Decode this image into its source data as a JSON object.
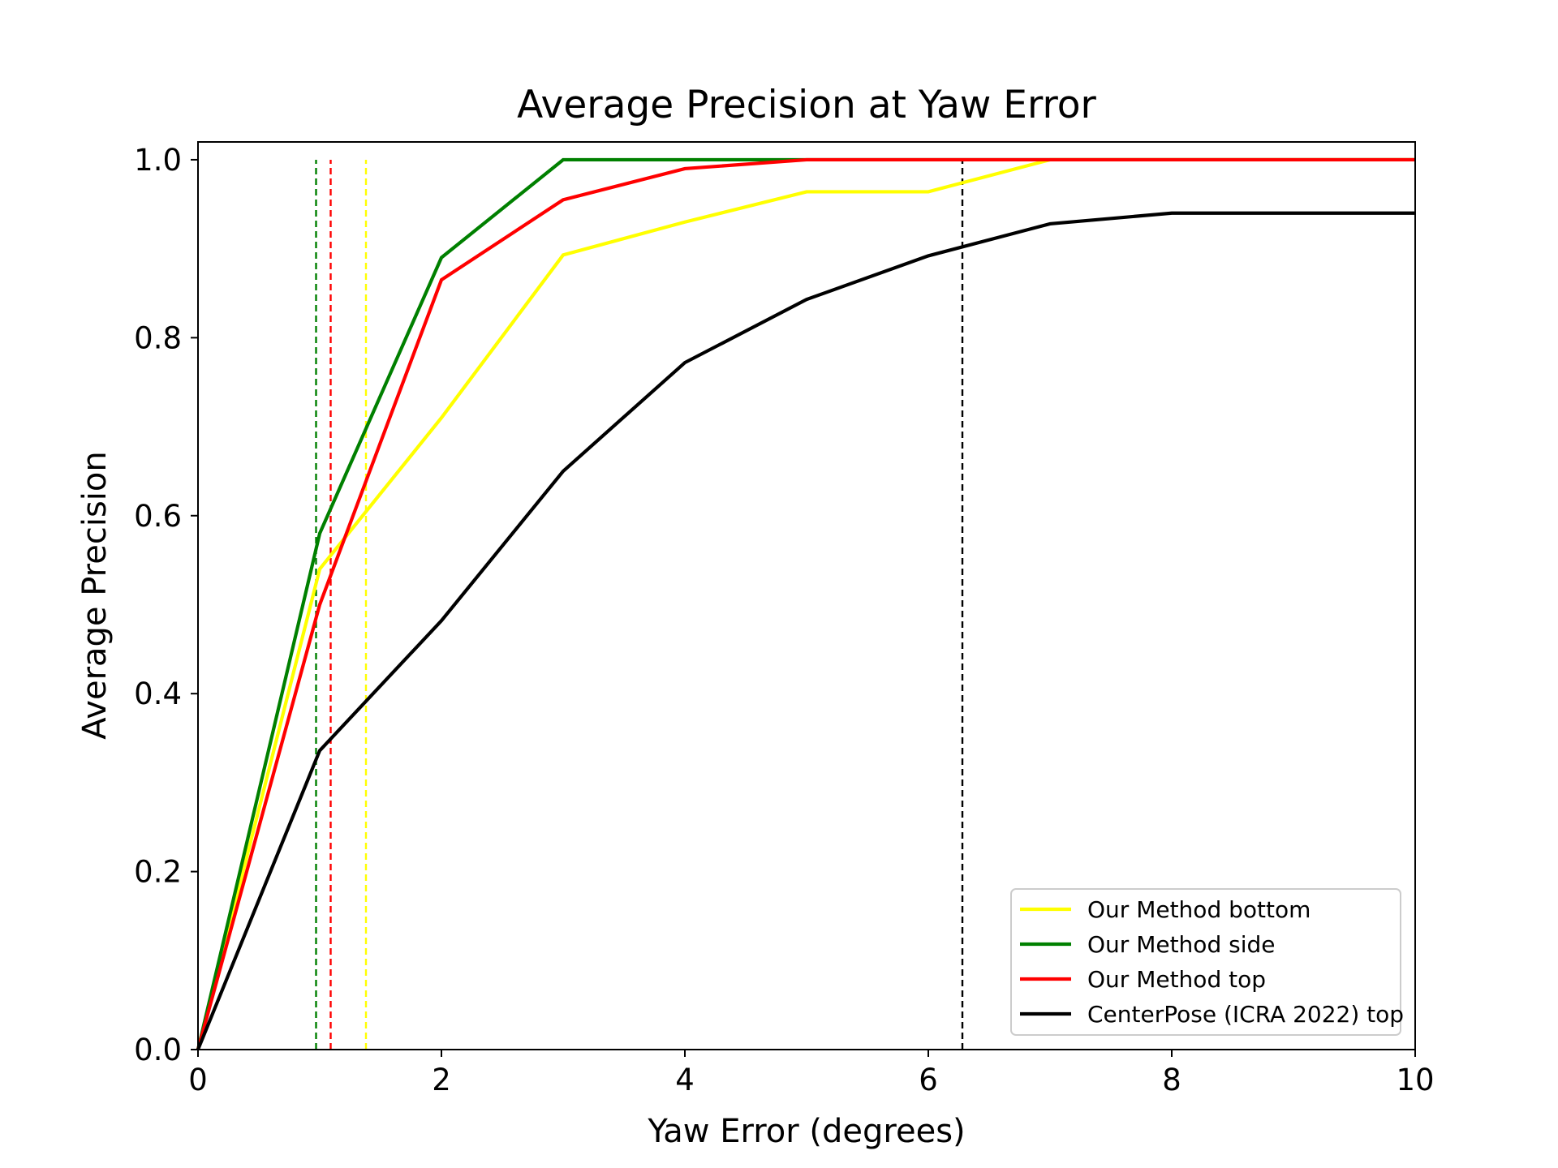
{
  "chart_data": {
    "type": "line",
    "title": "Average Precision at Yaw Error",
    "xlabel": "Yaw Error (degrees)",
    "ylabel": "Average Precision",
    "xlim": [
      0,
      10
    ],
    "ylim": [
      0,
      1.02
    ],
    "x_ticks": [
      0,
      2,
      4,
      6,
      8,
      10
    ],
    "y_ticks": [
      0.0,
      0.2,
      0.4,
      0.6,
      0.8,
      1.0
    ],
    "x_tick_labels": [
      "0",
      "2",
      "4",
      "6",
      "8",
      "10"
    ],
    "y_tick_labels": [
      "0.0",
      "0.2",
      "0.4",
      "0.6",
      "0.8",
      "1.0"
    ],
    "grid": false,
    "legend_position": "lower-right",
    "x": [
      0,
      1,
      2,
      3,
      4,
      5,
      6,
      7,
      8,
      9,
      10
    ],
    "series": [
      {
        "name": "Our Method bottom",
        "color": "#ffff00",
        "values": [
          0,
          0.54,
          0.71,
          0.893,
          0.93,
          0.964,
          0.964,
          1.0,
          1.0,
          1.0,
          1.0
        ],
        "threshold_x": 1.38
      },
      {
        "name": "Our Method side",
        "color": "#008000",
        "values": [
          0,
          0.58,
          0.89,
          1.0,
          1.0,
          1.0,
          1.0,
          1.0,
          1.0,
          1.0,
          1.0
        ],
        "threshold_x": 0.97
      },
      {
        "name": "Our Method top",
        "color": "#ff0000",
        "values": [
          0,
          0.5,
          0.865,
          0.955,
          0.99,
          1.0,
          1.0,
          1.0,
          1.0,
          1.0,
          1.0
        ],
        "threshold_x": 1.09
      },
      {
        "name": "CenterPose (ICRA 2022) top",
        "color": "#000000",
        "values": [
          0,
          0.336,
          0.482,
          0.65,
          0.772,
          0.843,
          0.892,
          0.928,
          0.94,
          0.94,
          0.94
        ],
        "threshold_x": 6.28
      }
    ]
  }
}
